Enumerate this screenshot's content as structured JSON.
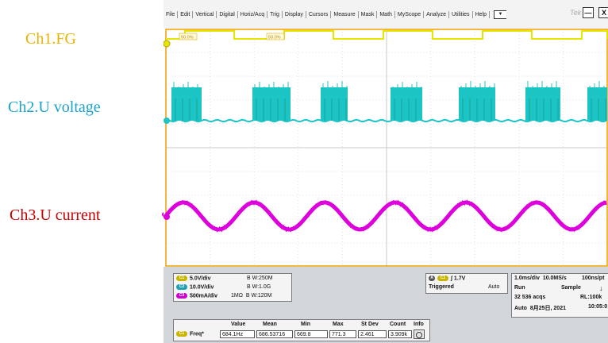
{
  "side_labels": {
    "ch1": {
      "text": "Ch1.FG",
      "color": "#e8b400"
    },
    "ch2": {
      "text": "Ch2.U voltage",
      "color": "#1aa3cc"
    },
    "ch3": {
      "text": "Ch3.U current",
      "color": "#cc0000"
    }
  },
  "menu": [
    "File",
    "Edit",
    "Vertical",
    "Digital",
    "Horiz/Acq",
    "Trig",
    "Display",
    "Cursors",
    "Measure",
    "Mask",
    "Math",
    "MyScope",
    "Analyze",
    "Utilities",
    "Help"
  ],
  "brand": "Tek",
  "window_buttons": {
    "minimize": "—",
    "close": "X"
  },
  "waveform": {
    "duty_label_1": "50.0%",
    "duty_label_2": "50.0%",
    "ch1_color": "#e6e600",
    "ch2_color": "#1cc4c4",
    "ch3_color": "#dd00dd",
    "bracket_color": "#f0a000"
  },
  "channels_panel": {
    "rows": [
      {
        "badge": "C1",
        "color": "#c9b400",
        "scale": "5.0V/div",
        "extra": "",
        "bw": "B W:250M"
      },
      {
        "badge": "C2",
        "color": "#1aa3b3",
        "scale": "10.0V/div",
        "extra": "",
        "bw": "B W:1.0G"
      },
      {
        "badge": "C3",
        "color": "#cc00cc",
        "scale": "500mA/div",
        "extra": "1MΩ",
        "bw": "B W:120M"
      }
    ]
  },
  "trigger_panel": {
    "source_badge": "C1",
    "level": "1.7V",
    "mode_letter": "A",
    "status": "Triggered",
    "mode": "Auto"
  },
  "acq_panel": {
    "timebase": "1.0ms/div",
    "sample_rate": "10.0MS/s",
    "resolution": "100ns/pt",
    "run": "Run",
    "sample": "Sample",
    "acqs": "32 536 acqs",
    "record": "RL:100k",
    "mode": "Auto",
    "date": "8月25日, 2021",
    "time": "10:05:0"
  },
  "measure_table": {
    "headers": [
      "Value",
      "Mean",
      "Min",
      "Max",
      "St Dev",
      "Count",
      "Info"
    ],
    "badge": "C1",
    "name": "Freq*",
    "values": [
      "684.1Hz",
      "686.53716",
      "669.8",
      "771.3",
      "2.461",
      "3.909k"
    ]
  }
}
